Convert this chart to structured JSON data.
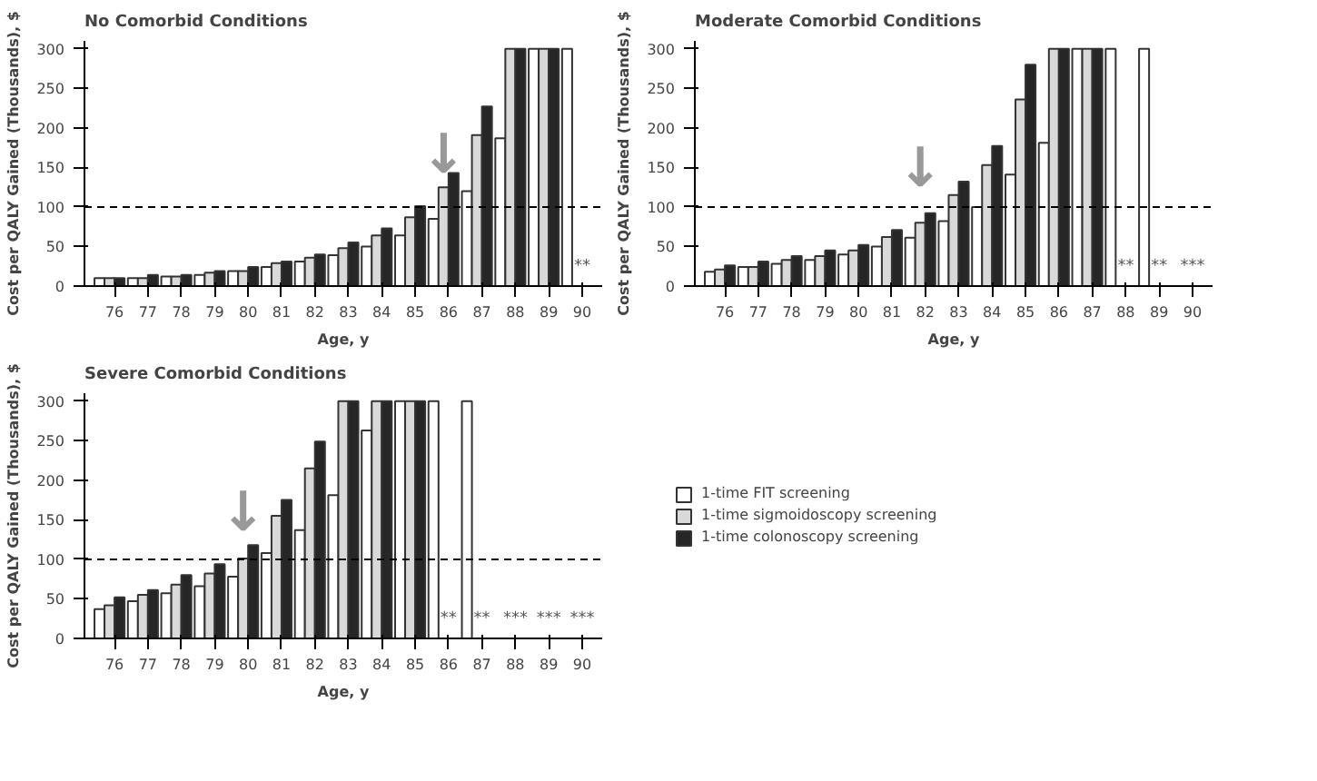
{
  "chart_data": [
    {
      "type": "bar",
      "title": "No Comorbid Conditions",
      "xlabel": "Age, y",
      "ylabel": "Cost per QALY Gained (Thousands), $",
      "categories": [
        "76",
        "77",
        "78",
        "79",
        "80",
        "81",
        "82",
        "83",
        "84",
        "85",
        "86",
        "87",
        "88",
        "89",
        "90"
      ],
      "series": [
        {
          "color": "#ffffff",
          "values": [
            10,
            10,
            12,
            14,
            19,
            24,
            31,
            39,
            50,
            64,
            85,
            120,
            187,
            300,
            300
          ]
        },
        {
          "color": "#d9d9d9",
          "values": [
            10,
            10,
            12,
            17,
            19,
            29,
            36,
            48,
            64,
            87,
            125,
            191,
            300,
            300,
            null
          ]
        },
        {
          "color": "#262626",
          "values": [
            10,
            14,
            14,
            19,
            24,
            31,
            40,
            55,
            73,
            101,
            143,
            227,
            300,
            300,
            null
          ]
        }
      ],
      "ylim": [
        0,
        310
      ],
      "yticks": [
        0,
        50,
        100,
        150,
        200,
        250,
        300
      ],
      "grid": false,
      "ref_lines": [
        {
          "axis": "y",
          "value": 100,
          "line_style": "dashed",
          "color": "#000000"
        }
      ],
      "annotations": [
        "**",
        {
          "text": "↓",
          "x": "86",
          "y": 125
        }
      ]
    },
    {
      "type": "bar",
      "title": "Moderate Comorbid Conditions",
      "xlabel": "Age, y",
      "ylabel": "Cost per QALY Gained (Thousands), $",
      "categories": [
        "76",
        "77",
        "78",
        "79",
        "80",
        "81",
        "82",
        "83",
        "84",
        "85",
        "86",
        "87",
        "88",
        "89",
        "90"
      ],
      "series": [
        {
          "color": "#ffffff",
          "values": [
            18,
            24,
            28,
            33,
            40,
            50,
            61,
            82,
            100,
            141,
            181,
            300,
            300,
            300,
            null
          ]
        },
        {
          "color": "#d9d9d9",
          "values": [
            21,
            24,
            33,
            38,
            45,
            62,
            80,
            115,
            153,
            236,
            300,
            300,
            null,
            null,
            null
          ]
        },
        {
          "color": "#262626",
          "values": [
            26,
            31,
            38,
            45,
            52,
            71,
            92,
            132,
            177,
            280,
            300,
            300,
            null,
            null,
            null
          ]
        }
      ],
      "ylim": [
        0,
        310
      ],
      "yticks": [
        0,
        50,
        100,
        150,
        200,
        250,
        300
      ],
      "grid": false,
      "ref_lines": [
        {
          "axis": "y",
          "value": 100,
          "line_style": "dashed",
          "color": "#000000"
        }
      ],
      "annotations": [
        "**",
        "**",
        "***",
        {
          "text": "↓",
          "x": "82",
          "y": 108
        }
      ]
    },
    {
      "type": "bar",
      "title": "Severe Comorbid Conditions",
      "xlabel": "Age, y",
      "ylabel": "Cost per QALY Gained (Thousands), $",
      "categories": [
        "76",
        "77",
        "78",
        "79",
        "80",
        "81",
        "82",
        "83",
        "84",
        "85",
        "86",
        "87",
        "88",
        "89",
        "90"
      ],
      "series": [
        {
          "name": "1-time FIT screening",
          "color": "#ffffff",
          "values": [
            37,
            47,
            57,
            66,
            78,
            108,
            137,
            181,
            263,
            300,
            300,
            300,
            null,
            null,
            null
          ]
        },
        {
          "name": "1-time sigmoidoscopy screening",
          "color": "#d9d9d9",
          "values": [
            42,
            55,
            68,
            82,
            101,
            155,
            215,
            300,
            300,
            300,
            null,
            null,
            null,
            null,
            null
          ]
        },
        {
          "name": "1-time colonoscopy screening",
          "color": "#262626",
          "values": [
            52,
            61,
            80,
            94,
            118,
            175,
            249,
            300,
            300,
            300,
            null,
            null,
            null,
            null,
            null
          ]
        }
      ],
      "ylim": [
        0,
        310
      ],
      "yticks": [
        0,
        50,
        100,
        150,
        200,
        250,
        300
      ],
      "grid": false,
      "legend": "right",
      "ref_lines": [
        {
          "axis": "y",
          "value": 100,
          "line_style": "dashed",
          "color": "#000000"
        }
      ],
      "annotations": [
        "**",
        "**",
        "***",
        "***",
        "***",
        {
          "text": "↓",
          "x": "80",
          "y": 118
        }
      ]
    }
  ]
}
